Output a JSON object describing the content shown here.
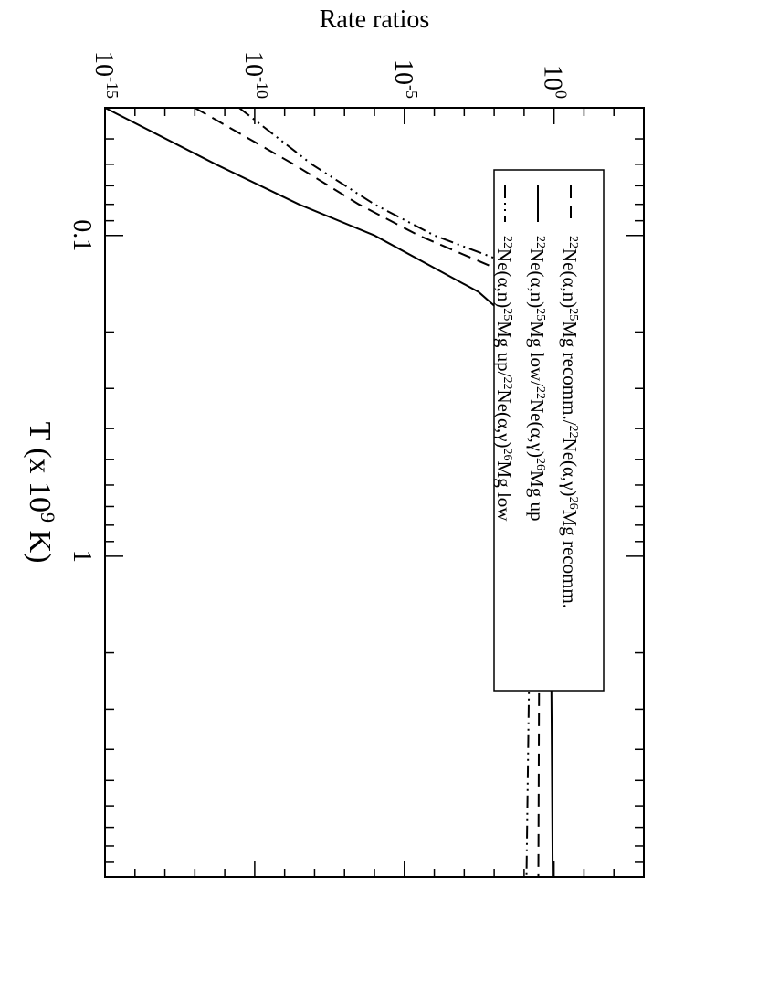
{
  "chart_data": {
    "type": "line",
    "orientation": "rotated-90-clockwise",
    "xlabel": "T (x 10",
    "xlabel_sup": "9",
    "xlabel_end": " K)",
    "ylabel": "Rate ratios",
    "x_scale": "log",
    "y_scale": "log",
    "xlim": [
      0.04,
      10
    ],
    "ylim": [
      1e-15,
      1000.0
    ],
    "x_ticks": [
      {
        "value": 0.1,
        "label": "0.1"
      },
      {
        "value": 1,
        "label": "1"
      }
    ],
    "y_ticks": [
      {
        "value": 1e-15,
        "base": "10",
        "exp": "-15"
      },
      {
        "value": 1e-10,
        "base": "10",
        "exp": "-10"
      },
      {
        "value": 1e-05,
        "base": "10",
        "exp": "-5"
      },
      {
        "value": 1,
        "base": "10",
        "exp": "0"
      }
    ],
    "grid": false,
    "legend": {
      "position": "top-right"
    },
    "series": [
      {
        "name": "recomm",
        "legend": [
          {
            "t": "22",
            "sup": true
          },
          {
            "t": "Ne(α,n)"
          },
          {
            "t": "25",
            "sup": true
          },
          {
            "t": "Mg recomm./"
          },
          {
            "t": "22",
            "sup": true
          },
          {
            "t": "Ne(α,γ)"
          },
          {
            "t": "26",
            "sup": true
          },
          {
            "t": "Mg recomm."
          }
        ],
        "dash": "14,8",
        "x": [
          0.04,
          0.06,
          0.08,
          0.1,
          0.15,
          0.2,
          0.25,
          0.3,
          0.5,
          1,
          2,
          10
        ],
        "y": [
          1e-12,
          2e-09,
          3e-07,
          3e-05,
          0.8,
          1.0,
          0.8,
          0.6,
          0.4,
          0.35,
          0.32,
          0.3
        ]
      },
      {
        "name": "low/up",
        "legend": [
          {
            "t": "22",
            "sup": true
          },
          {
            "t": "Ne(α,n)"
          },
          {
            "t": "25",
            "sup": true
          },
          {
            "t": "Mg low/"
          },
          {
            "t": "22",
            "sup": true
          },
          {
            "t": "Ne(α,γ)"
          },
          {
            "t": "26",
            "sup": true
          },
          {
            "t": "Mg up"
          }
        ],
        "dash": "",
        "x": [
          0.04,
          0.06,
          0.08,
          0.1,
          0.15,
          0.2,
          0.25,
          0.3,
          0.5,
          1,
          2,
          10
        ],
        "y": [
          1e-15,
          5e-12,
          3e-09,
          1e-06,
          0.003,
          0.1,
          0.4,
          0.5,
          0.6,
          0.7,
          0.8,
          0.9
        ]
      },
      {
        "name": "up/low",
        "legend": [
          {
            "t": "22",
            "sup": true
          },
          {
            "t": "Ne(α,n)"
          },
          {
            "t": "25",
            "sup": true
          },
          {
            "t": "Mg up/"
          },
          {
            "t": "22",
            "sup": true
          },
          {
            "t": "Ne(α,γ)"
          },
          {
            "t": "26",
            "sup": true
          },
          {
            "t": "Mg low"
          }
        ],
        "dash": "14,5,2,5,2,5",
        "x": [
          0.04,
          0.06,
          0.08,
          0.1,
          0.15,
          0.2,
          0.25,
          0.3,
          0.5,
          1,
          2,
          10
        ],
        "y": [
          3e-11,
          8e-09,
          1e-06,
          0.0001,
          10,
          10,
          5,
          2,
          0.5,
          0.2,
          0.15,
          0.12
        ]
      }
    ]
  }
}
